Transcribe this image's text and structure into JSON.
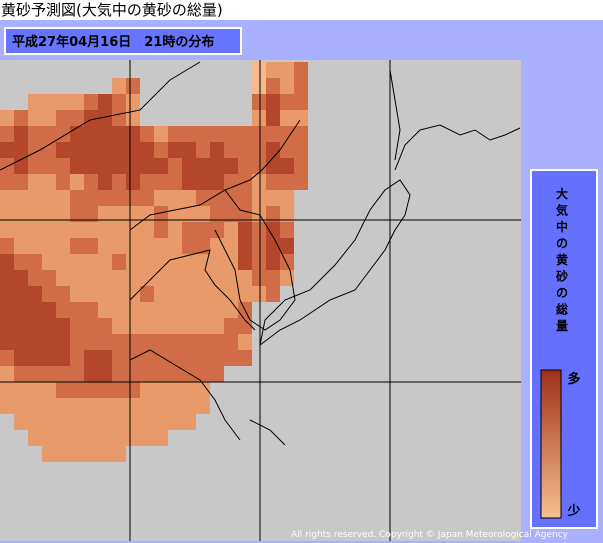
{
  "header": {
    "title": "黄砂予測図(大気中の黄砂の総量)"
  },
  "map": {
    "date_label": "平成27年04月16日　21時の分布",
    "copyright": "All rights reserved. Copyright © Japan Meteorological Agency"
  },
  "legend": {
    "title": "大気中の黄砂の総量",
    "high": "多",
    "low": "少"
  }
}
